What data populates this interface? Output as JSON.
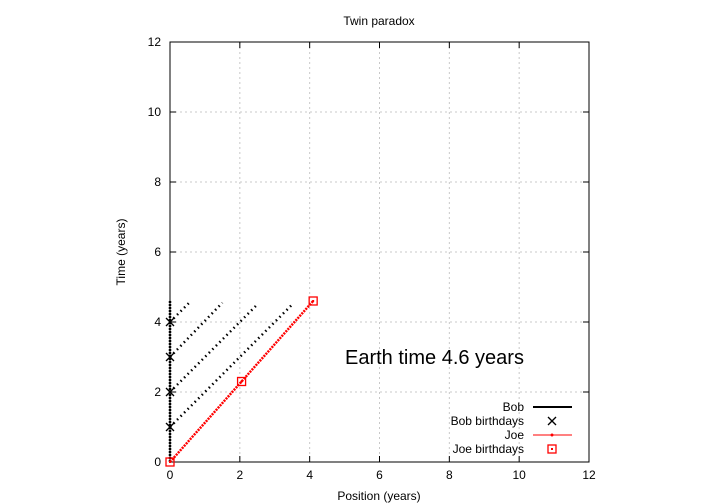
{
  "chart_data": {
    "type": "line",
    "title": "Twin paradox",
    "xlabel": "Position (years)",
    "ylabel": "Time (years)",
    "xlim": [
      0,
      12
    ],
    "ylim": [
      0,
      12
    ],
    "x_ticks": [
      0,
      2,
      4,
      6,
      8,
      10,
      12
    ],
    "y_ticks": [
      0,
      2,
      4,
      6,
      8,
      10,
      12
    ],
    "grid": true,
    "legend_position": "bottom-right",
    "annotation": "Earth time  4.6 years",
    "colors": {
      "bob": "#000000",
      "joe": "#ff0000",
      "grid": "#c8c8c8"
    },
    "series": [
      {
        "name": "Bob",
        "kind": "line",
        "color": "#000000",
        "points": [
          [
            0,
            0
          ],
          [
            0,
            4.6
          ]
        ]
      },
      {
        "name": "Bob birthdays",
        "kind": "marker-x",
        "color": "#000000",
        "points": [
          [
            0,
            1
          ],
          [
            0,
            2
          ],
          [
            0,
            3
          ],
          [
            0,
            4
          ]
        ]
      },
      {
        "name": "Joe",
        "kind": "line",
        "color": "#ff0000",
        "points": [
          [
            0,
            0
          ],
          [
            4.1,
            4.6
          ]
        ]
      },
      {
        "name": "Joe birthdays",
        "kind": "marker-square",
        "color": "#ff0000",
        "points": [
          [
            0,
            0
          ],
          [
            2.05,
            2.3
          ],
          [
            4.1,
            4.6
          ]
        ]
      }
    ],
    "signal_lines": [
      {
        "from": [
          0,
          1
        ],
        "to": [
          3.5,
          4.5
        ]
      },
      {
        "from": [
          0,
          2
        ],
        "to": [
          2.5,
          4.5
        ]
      },
      {
        "from": [
          0,
          3
        ],
        "to": [
          1.5,
          4.55
        ]
      },
      {
        "from": [
          0,
          4
        ],
        "to": [
          0.6,
          4.6
        ]
      }
    ],
    "legend": [
      {
        "label": "Bob",
        "symbol": "line"
      },
      {
        "label": "Bob birthdays",
        "symbol": "x"
      },
      {
        "label": "Joe",
        "symbol": "line-red"
      },
      {
        "label": "Joe birthdays",
        "symbol": "square"
      }
    ]
  }
}
